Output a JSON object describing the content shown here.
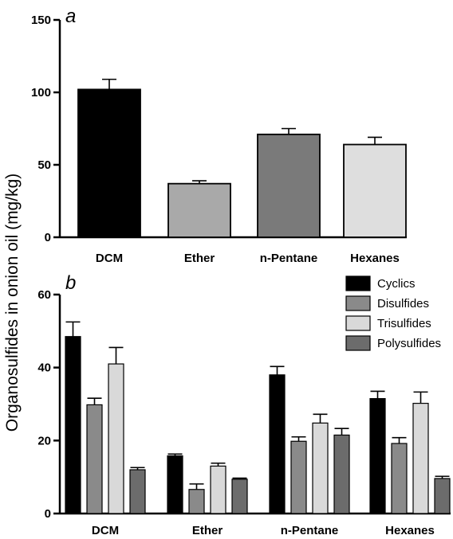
{
  "ylabel": "Organosulfides in onion oil  (mg/kg)",
  "chart_data": [
    {
      "type": "bar",
      "panel": "a",
      "categories": [
        "DCM",
        "Ether",
        "n-Pentane",
        "Hexanes"
      ],
      "values": [
        102,
        37,
        71,
        64
      ],
      "errors": [
        7,
        2,
        4,
        5
      ],
      "ylim": [
        0,
        150
      ],
      "yticks": [
        0,
        50,
        100,
        150
      ],
      "colors": [
        "#000000",
        "#a9a9a9",
        "#7a7a7a",
        "#dedede"
      ]
    },
    {
      "type": "bar",
      "panel": "b",
      "categories": [
        "DCM",
        "Ether",
        "n-Pentane",
        "Hexanes"
      ],
      "ylim": [
        0,
        60
      ],
      "yticks": [
        0,
        20,
        40,
        60
      ],
      "legend_position": "top-right",
      "series": [
        {
          "name": "Cyclics",
          "color": "#000000",
          "values": [
            48.5,
            15.8,
            38,
            31.5
          ],
          "errors": [
            4,
            0.5,
            2.3,
            2
          ]
        },
        {
          "name": "Disulfides",
          "color": "#8a8a8a",
          "values": [
            29.8,
            6.6,
            19.8,
            19.2
          ],
          "errors": [
            1.8,
            1.5,
            1.2,
            1.6
          ]
        },
        {
          "name": "Trisulfides",
          "color": "#d9d9d9",
          "values": [
            41,
            13,
            24.8,
            30.2
          ],
          "errors": [
            4.5,
            0.8,
            2.4,
            3.1
          ]
        },
        {
          "name": "Polysulfides",
          "color": "#6c6c6c",
          "values": [
            12,
            9.4,
            21.5,
            9.6
          ],
          "errors": [
            0.6,
            0.3,
            1.8,
            0.6
          ]
        }
      ]
    }
  ]
}
